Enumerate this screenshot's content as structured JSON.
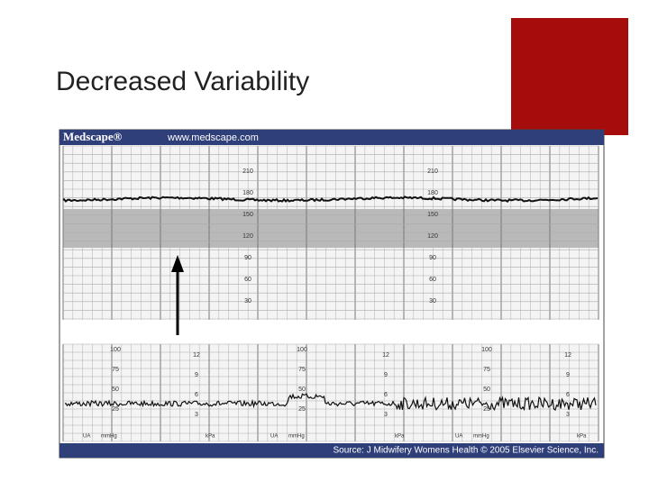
{
  "slide": {
    "title": "Decreased Variability",
    "figure": {
      "brand": "Medscape®",
      "url": "www.medscape.com",
      "source": "Source: J Midwifery Womens Health © 2005 Elsevier Science, Inc.",
      "fhr_scale": [
        "210",
        "180",
        "150",
        "120",
        "90",
        "60",
        "30"
      ],
      "ua_scale": [
        "100",
        "75",
        "50",
        "25"
      ],
      "kpa_scale": [
        "12",
        "9",
        "6",
        "3"
      ],
      "ua_label": "UA",
      "ua_unit": "mmHg",
      "kpa_unit": "kPa"
    }
  }
}
